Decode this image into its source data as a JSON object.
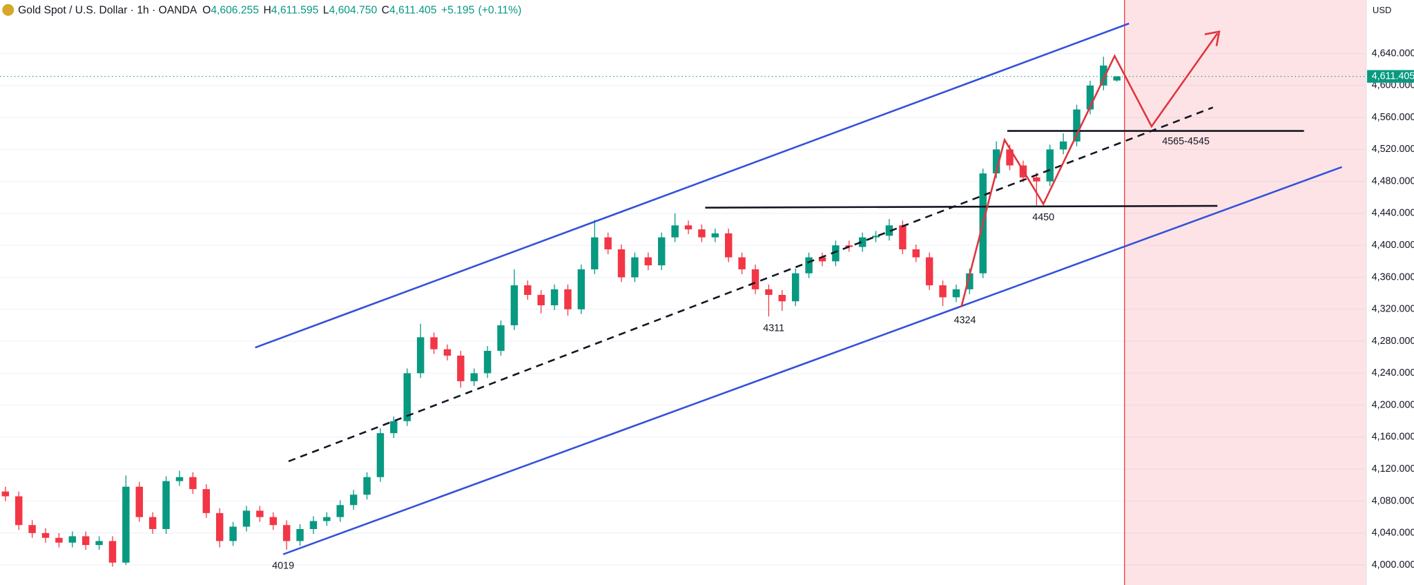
{
  "chart_data": {
    "type": "candlestick",
    "title": "Gold Spot / U.S. Dollar · 1h · OANDA",
    "quote": {
      "open": {
        "prefix": "O",
        "value": 4606.255,
        "label": "4,606.255"
      },
      "high": {
        "prefix": "H",
        "value": 4611.595,
        "label": "4,611.595"
      },
      "low": {
        "prefix": "L",
        "value": 4604.75,
        "label": "4,604.750"
      },
      "close": {
        "prefix": "C",
        "value": 4611.405,
        "label": "4,611.405"
      },
      "change": {
        "value": 5.195,
        "label": "+5.195"
      },
      "change_percent": {
        "value": 0.11,
        "label": "(+0.11%)"
      }
    },
    "currency": "USD",
    "last_price": {
      "value": 4611.405,
      "label": "4,611.405"
    },
    "up_color": "#089981",
    "down_color": "#f23645",
    "grid": true,
    "ylim": [
      3975,
      4707
    ],
    "yticks": [
      {
        "value": 4000,
        "label": "4,000.000"
      },
      {
        "value": 4040,
        "label": "4,040.000"
      },
      {
        "value": 4080,
        "label": "4,080.000"
      },
      {
        "value": 4120,
        "label": "4,120.000"
      },
      {
        "value": 4160,
        "label": "4,160.000"
      },
      {
        "value": 4200,
        "label": "4,200.000"
      },
      {
        "value": 4240,
        "label": "4,240.000"
      },
      {
        "value": 4280,
        "label": "4,280.000"
      },
      {
        "value": 4320,
        "label": "4,320.000"
      },
      {
        "value": 4360,
        "label": "4,360.000"
      },
      {
        "value": 4400,
        "label": "4,400.000"
      },
      {
        "value": 4440,
        "label": "4,440.000"
      },
      {
        "value": 4480,
        "label": "4,480.000"
      },
      {
        "value": 4520,
        "label": "4,520.000"
      },
      {
        "value": 4560,
        "label": "4,560.000"
      },
      {
        "value": 4600,
        "label": "4,600.000"
      },
      {
        "value": 4640,
        "label": "4,640.000"
      }
    ],
    "open": [
      4092,
      4086,
      4050,
      4040,
      4034,
      4028,
      4036,
      4025,
      4030,
      4003,
      4098,
      4060,
      4045,
      4105,
      4110,
      4095,
      4065,
      4030,
      4048,
      4068,
      4060,
      4050,
      4030,
      4045,
      4055,
      4060,
      4075,
      4088,
      4110,
      4165,
      4180,
      4240,
      4285,
      4270,
      4262,
      4230,
      4240,
      4268,
      4300,
      4350,
      4338,
      4325,
      4345,
      4320,
      4370,
      4410,
      4395,
      4360,
      4385,
      4375,
      4410,
      4425,
      4420,
      4410,
      4415,
      4385,
      4370,
      4345,
      4338,
      4330,
      4365,
      4385,
      4380,
      4400,
      4398,
      4410,
      4412,
      4425,
      4395,
      4385,
      4350,
      4335,
      4345,
      4365,
      4490,
      4520,
      4500,
      4485,
      4480,
      4520,
      4530,
      4570,
      4600,
      4606.255
    ],
    "high": [
      4098,
      4092,
      4056,
      4046,
      4040,
      4042,
      4042,
      4036,
      4036,
      4112,
      4104,
      4066,
      4111,
      4118,
      4116,
      4101,
      4071,
      4054,
      4074,
      4074,
      4066,
      4056,
      4051,
      4061,
      4066,
      4081,
      4094,
      4116,
      4171,
      4186,
      4246,
      4302,
      4291,
      4276,
      4268,
      4246,
      4274,
      4306,
      4370,
      4356,
      4344,
      4351,
      4351,
      4376,
      4432,
      4416,
      4401,
      4391,
      4391,
      4416,
      4440,
      4431,
      4426,
      4421,
      4421,
      4391,
      4376,
      4351,
      4344,
      4371,
      4391,
      4391,
      4406,
      4406,
      4416,
      4418,
      4433,
      4431,
      4401,
      4391,
      4356,
      4351,
      4371,
      4496,
      4530,
      4526,
      4506,
      4491,
      4526,
      4540,
      4576,
      4606,
      4636,
      4611.595
    ],
    "low": [
      4080,
      4044,
      4034,
      4028,
      4022,
      4022,
      4019,
      4019,
      3998,
      4000,
      4054,
      4039,
      4039,
      4099,
      4089,
      4059,
      4022,
      4024,
      4042,
      4054,
      4044,
      4019,
      4024,
      4039,
      4049,
      4054,
      4069,
      4082,
      4104,
      4159,
      4174,
      4234,
      4264,
      4256,
      4222,
      4224,
      4234,
      4262,
      4294,
      4332,
      4315,
      4319,
      4312,
      4314,
      4364,
      4389,
      4354,
      4354,
      4369,
      4369,
      4404,
      4414,
      4404,
      4404,
      4379,
      4364,
      4339,
      4311,
      4318,
      4324,
      4359,
      4374,
      4374,
      4392,
      4392,
      4404,
      4406,
      4389,
      4379,
      4344,
      4324,
      4329,
      4339,
      4359,
      4484,
      4494,
      4479,
      4450,
      4474,
      4514,
      4524,
      4564,
      4594,
      4604.75
    ],
    "close": [
      4086,
      4050,
      4040,
      4034,
      4028,
      4036,
      4025,
      4030,
      4003,
      4098,
      4060,
      4045,
      4105,
      4110,
      4095,
      4065,
      4030,
      4048,
      4068,
      4060,
      4050,
      4030,
      4045,
      4055,
      4060,
      4075,
      4088,
      4110,
      4165,
      4180,
      4240,
      4285,
      4270,
      4262,
      4230,
      4240,
      4268,
      4300,
      4350,
      4338,
      4325,
      4345,
      4320,
      4370,
      4410,
      4395,
      4360,
      4385,
      4375,
      4410,
      4425,
      4420,
      4410,
      4415,
      4385,
      4370,
      4345,
      4338,
      4330,
      4365,
      4385,
      4380,
      4400,
      4398,
      4410,
      4412,
      4425,
      4395,
      4385,
      4350,
      4335,
      4345,
      4365,
      4490,
      4520,
      4500,
      4485,
      4480,
      4520,
      4530,
      4570,
      4600,
      4625,
      4611.405
    ],
    "annotations": [
      "4019",
      "4311",
      "4324",
      "4450",
      "4565-4545"
    ]
  }
}
